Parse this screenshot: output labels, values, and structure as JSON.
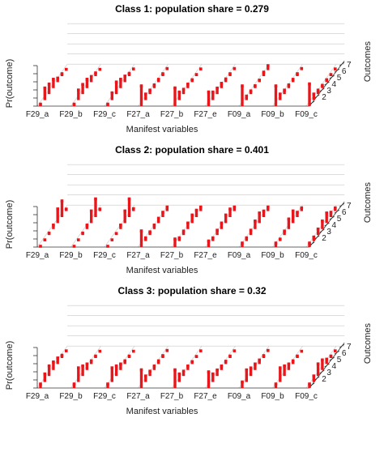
{
  "chart_data": [
    {
      "type": "bar",
      "title": "Class 1: population share = 0.279",
      "xlabel": "Manifest variables",
      "ylabel": "Pr(outcome)",
      "zlabel": "Outcomes",
      "categories": [
        "F29_a",
        "F29_b",
        "F29_c",
        "F27_a",
        "F27_b",
        "F27_e",
        "F09_a",
        "F09_b",
        "F09_c"
      ],
      "outcomes": [
        "1",
        "2",
        "3",
        "4",
        "5",
        "6",
        "7"
      ],
      "ylim": [
        0,
        1
      ],
      "bar_color": "#e8161b",
      "values": [
        [
          0.05,
          0.3,
          0.25,
          0.22,
          0.1,
          0.06,
          0.02
        ],
        [
          0.05,
          0.25,
          0.24,
          0.22,
          0.14,
          0.08,
          0.02
        ],
        [
          0.05,
          0.18,
          0.3,
          0.22,
          0.15,
          0.07,
          0.03
        ],
        [
          0.5,
          0.15,
          0.1,
          0.08,
          0.07,
          0.06,
          0.04
        ],
        [
          0.45,
          0.2,
          0.12,
          0.1,
          0.06,
          0.04,
          0.03
        ],
        [
          0.35,
          0.2,
          0.15,
          0.12,
          0.08,
          0.06,
          0.04
        ],
        [
          0.5,
          0.1,
          0.08,
          0.06,
          0.05,
          0.1,
          0.11
        ],
        [
          0.5,
          0.15,
          0.1,
          0.08,
          0.07,
          0.06,
          0.04
        ],
        [
          0.55,
          0.15,
          0.1,
          0.07,
          0.06,
          0.04,
          0.03
        ]
      ]
    },
    {
      "type": "bar",
      "title": "Class 2: population share = 0.401",
      "xlabel": "Manifest variables",
      "ylabel": "Pr(outcome)",
      "zlabel": "Outcomes",
      "categories": [
        "F29_a",
        "F29_b",
        "F29_c",
        "F27_a",
        "F27_b",
        "F27_e",
        "F09_a",
        "F09_b",
        "F09_c"
      ],
      "outcomes": [
        "1",
        "2",
        "3",
        "4",
        "5",
        "6",
        "7"
      ],
      "ylim": [
        0,
        1
      ],
      "bar_color": "#e8161b",
      "values": [
        [
          0.02,
          0.03,
          0.05,
          0.1,
          0.35,
          0.4,
          0.05
        ],
        [
          0.02,
          0.03,
          0.05,
          0.1,
          0.3,
          0.45,
          0.05
        ],
        [
          0.02,
          0.03,
          0.04,
          0.1,
          0.3,
          0.45,
          0.06
        ],
        [
          0.4,
          0.08,
          0.08,
          0.1,
          0.12,
          0.12,
          0.1
        ],
        [
          0.2,
          0.08,
          0.1,
          0.15,
          0.2,
          0.17,
          0.1
        ],
        [
          0.15,
          0.08,
          0.12,
          0.15,
          0.2,
          0.2,
          0.1
        ],
        [
          0.1,
          0.08,
          0.12,
          0.2,
          0.25,
          0.15,
          0.1
        ],
        [
          0.1,
          0.05,
          0.1,
          0.25,
          0.3,
          0.12,
          0.08
        ],
        [
          0.1,
          0.1,
          0.15,
          0.2,
          0.25,
          0.12,
          0.08
        ]
      ]
    },
    {
      "type": "bar",
      "title": "Class 3: population share = 0.32",
      "xlabel": "Manifest variables",
      "ylabel": "Pr(outcome)",
      "zlabel": "Outcomes",
      "categories": [
        "F29_a",
        "F29_b",
        "F29_c",
        "F27_a",
        "F27_b",
        "F27_e",
        "F09_a",
        "F09_b",
        "F09_c"
      ],
      "outcomes": [
        "1",
        "2",
        "3",
        "4",
        "5",
        "6",
        "7"
      ],
      "ylim": [
        0,
        1
      ],
      "bar_color": "#e8161b",
      "values": [
        [
          0.1,
          0.2,
          0.25,
          0.2,
          0.15,
          0.07,
          0.03
        ],
        [
          0.1,
          0.35,
          0.25,
          0.15,
          0.08,
          0.05,
          0.02
        ],
        [
          0.1,
          0.35,
          0.25,
          0.15,
          0.08,
          0.05,
          0.02
        ],
        [
          0.45,
          0.15,
          0.12,
          0.1,
          0.08,
          0.06,
          0.04
        ],
        [
          0.45,
          0.2,
          0.12,
          0.1,
          0.06,
          0.04,
          0.03
        ],
        [
          0.4,
          0.2,
          0.15,
          0.1,
          0.07,
          0.05,
          0.03
        ],
        [
          0.15,
          0.3,
          0.2,
          0.15,
          0.1,
          0.06,
          0.04
        ],
        [
          0.1,
          0.35,
          0.25,
          0.15,
          0.08,
          0.05,
          0.02
        ],
        [
          0.1,
          0.15,
          0.3,
          0.25,
          0.12,
          0.05,
          0.03
        ]
      ]
    }
  ]
}
